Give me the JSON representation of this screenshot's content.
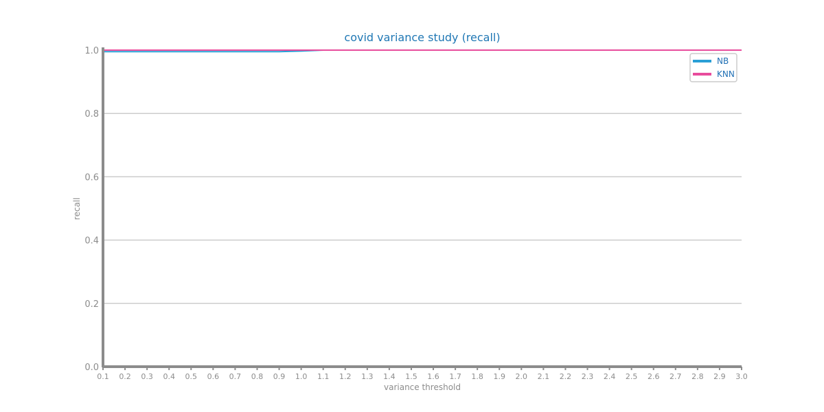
{
  "chart_data": {
    "type": "line",
    "title": "covid variance study (recall)",
    "xlabel": "variance threshold",
    "ylabel": "recall",
    "x": [
      0.1,
      0.2,
      0.3,
      0.4,
      0.5,
      0.6,
      0.7,
      0.8,
      0.9,
      1.0,
      1.1,
      1.2,
      1.3,
      1.4,
      1.5,
      1.6,
      1.7,
      1.8,
      1.9,
      2.0,
      2.1,
      2.2,
      2.3,
      2.4,
      2.5,
      2.6,
      2.7,
      2.8,
      2.9,
      3.0
    ],
    "x_tick_labels": [
      "0.1",
      "0.2",
      "0.3",
      "0.4",
      "0.5",
      "0.6",
      "0.7",
      "0.8",
      "0.9",
      "1.0",
      "1.1",
      "1.2",
      "1.3",
      "1.4",
      "1.5",
      "1.6",
      "1.7",
      "1.8",
      "1.9",
      "2.0",
      "2.1",
      "2.2",
      "2.3",
      "2.4",
      "2.5",
      "2.6",
      "2.7",
      "2.8",
      "2.9",
      "3.0"
    ],
    "y_ticks": [
      0.0,
      0.2,
      0.4,
      0.6,
      0.8,
      1.0
    ],
    "y_tick_labels": [
      "0.0",
      "0.2",
      "0.4",
      "0.6",
      "0.8",
      "1.0"
    ],
    "xlim": [
      0.1,
      3.0
    ],
    "ylim": [
      0.0,
      1.0
    ],
    "grid": "horizontal",
    "legend_position": "top-right",
    "series": [
      {
        "name": "NB",
        "color": "#2a9fd6",
        "values": [
          0.995,
          0.995,
          0.995,
          0.995,
          0.995,
          0.995,
          0.995,
          0.995,
          0.995,
          0.997,
          1.0,
          1.0,
          1.0,
          1.0,
          1.0,
          1.0,
          1.0,
          1.0,
          1.0,
          1.0,
          1.0,
          1.0,
          1.0,
          1.0,
          1.0,
          1.0,
          1.0,
          1.0,
          1.0,
          1.0
        ]
      },
      {
        "name": "KNN",
        "color": "#e84c9c",
        "values": [
          1.0,
          1.0,
          1.0,
          1.0,
          1.0,
          1.0,
          1.0,
          1.0,
          1.0,
          1.0,
          1.0,
          1.0,
          1.0,
          1.0,
          1.0,
          1.0,
          1.0,
          1.0,
          1.0,
          1.0,
          1.0,
          1.0,
          1.0,
          1.0,
          1.0,
          1.0,
          1.0,
          1.0,
          1.0,
          1.0
        ]
      }
    ],
    "colors": {
      "title": "#1f77b4",
      "axis": "#8c8c8c",
      "grid": "#cccccc",
      "legend_text": "#1f6fb4",
      "legend_border": "#cccccc"
    }
  }
}
